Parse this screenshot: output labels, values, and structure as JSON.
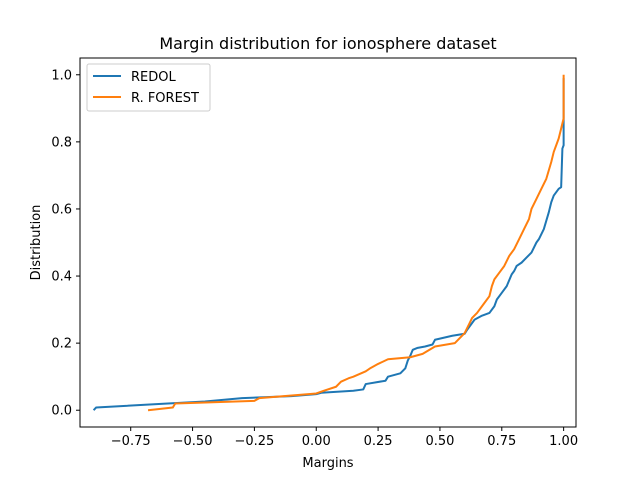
{
  "chart_data": {
    "type": "line",
    "title": "Margin distribution for ionosphere dataset",
    "xlabel": "Margins",
    "ylabel": "Distribution",
    "xlim": [
      -0.955,
      1.05
    ],
    "ylim": [
      -0.05,
      1.05
    ],
    "xticks": [
      -0.75,
      -0.5,
      -0.25,
      0.0,
      0.25,
      0.5,
      0.75,
      1.0
    ],
    "xtick_labels": [
      "−0.75",
      "−0.50",
      "−0.25",
      "0.00",
      "0.25",
      "0.50",
      "0.75",
      "1.00"
    ],
    "yticks": [
      0.0,
      0.2,
      0.4,
      0.6,
      0.8,
      1.0
    ],
    "ytick_labels": [
      "0.0",
      "0.2",
      "0.4",
      "0.6",
      "0.8",
      "1.0"
    ],
    "grid": false,
    "legend_position": "top-left",
    "series": [
      {
        "name": "REDOL",
        "color": "#1f77b4",
        "x": [
          -0.9,
          -0.89,
          -0.6,
          -0.45,
          -0.3,
          -0.1,
          0.0,
          0.02,
          0.15,
          0.19,
          0.2,
          0.28,
          0.29,
          0.34,
          0.36,
          0.37,
          0.38,
          0.39,
          0.41,
          0.44,
          0.47,
          0.48,
          0.55,
          0.6,
          0.61,
          0.63,
          0.64,
          0.67,
          0.7,
          0.72,
          0.73,
          0.75,
          0.77,
          0.79,
          0.8,
          0.81,
          0.83,
          0.85,
          0.87,
          0.89,
          0.9,
          0.92,
          0.93,
          0.94,
          0.95,
          0.96,
          0.97,
          0.98,
          0.99,
          0.995,
          1.0,
          1.0
        ],
        "y": [
          0.0,
          0.008,
          0.02,
          0.026,
          0.036,
          0.042,
          0.048,
          0.052,
          0.058,
          0.062,
          0.078,
          0.088,
          0.1,
          0.11,
          0.125,
          0.148,
          0.162,
          0.18,
          0.186,
          0.19,
          0.196,
          0.21,
          0.222,
          0.228,
          0.24,
          0.26,
          0.27,
          0.282,
          0.29,
          0.31,
          0.33,
          0.35,
          0.37,
          0.405,
          0.415,
          0.43,
          0.44,
          0.455,
          0.47,
          0.5,
          0.51,
          0.54,
          0.565,
          0.59,
          0.62,
          0.64,
          0.65,
          0.66,
          0.665,
          0.78,
          0.79,
          0.99
        ]
      },
      {
        "name": "R. FOREST",
        "color": "#ff7f0e",
        "x": [
          -0.68,
          -0.58,
          -0.57,
          -0.25,
          -0.23,
          0.0,
          0.03,
          0.08,
          0.1,
          0.13,
          0.15,
          0.2,
          0.22,
          0.25,
          0.29,
          0.38,
          0.43,
          0.48,
          0.56,
          0.6,
          0.62,
          0.63,
          0.65,
          0.68,
          0.7,
          0.71,
          0.72,
          0.74,
          0.76,
          0.78,
          0.8,
          0.82,
          0.84,
          0.86,
          0.87,
          0.89,
          0.91,
          0.93,
          0.95,
          0.96,
          0.97,
          0.98,
          0.99,
          1.0,
          1.0
        ],
        "y": [
          0.0,
          0.008,
          0.02,
          0.028,
          0.036,
          0.05,
          0.058,
          0.07,
          0.085,
          0.095,
          0.1,
          0.116,
          0.126,
          0.138,
          0.152,
          0.158,
          0.168,
          0.19,
          0.2,
          0.23,
          0.26,
          0.275,
          0.29,
          0.32,
          0.34,
          0.37,
          0.39,
          0.41,
          0.43,
          0.46,
          0.48,
          0.51,
          0.54,
          0.57,
          0.6,
          0.63,
          0.66,
          0.69,
          0.74,
          0.77,
          0.79,
          0.81,
          0.84,
          0.87,
          1.0
        ]
      }
    ]
  }
}
